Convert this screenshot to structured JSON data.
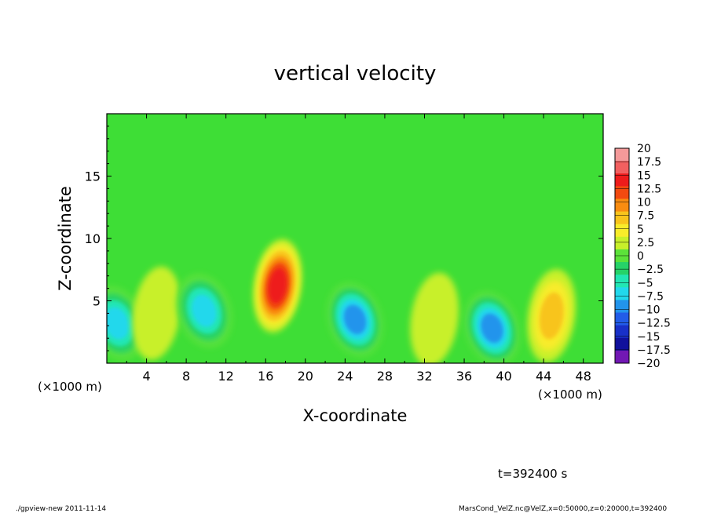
{
  "chart_data": {
    "type": "heatmap",
    "title": "vertical velocity",
    "xlabel": "X-coordinate",
    "ylabel": "Z-coordinate",
    "x_unit_note": "(×1000 m)",
    "x_unit_note_right": "(×1000 m)",
    "xlim": [
      0,
      50
    ],
    "ylim": [
      0,
      20
    ],
    "x_ticks": [
      4,
      8,
      12,
      16,
      20,
      24,
      28,
      32,
      36,
      40,
      44,
      48
    ],
    "y_ticks": [
      5,
      10,
      15
    ],
    "colorbar": {
      "levels": [
        20,
        17.5,
        15,
        12.5,
        10,
        7.5,
        5,
        2.5,
        0,
        -2.5,
        -5,
        -7.5,
        -10,
        -12.5,
        -15,
        -17.5,
        -20
      ],
      "level_labels": [
        "20",
        "17.5",
        "15",
        "12.5",
        "10",
        "7.5",
        "5",
        "2.5",
        "0",
        "−2.5",
        "−5",
        "−7.5",
        "−10",
        "−12.5",
        "−15",
        "−17.5",
        "−20"
      ],
      "colors": [
        "#f49a9a",
        "#f26060",
        "#ee1c1c",
        "#f24a10",
        "#f88c10",
        "#f8c41c",
        "#f8ec2a",
        "#c8f02a",
        "#5ce23a",
        "#26d268",
        "#22e6b4",
        "#22d8ec",
        "#2294ec",
        "#225ce8",
        "#1830c8",
        "#10109c",
        "#7218b4"
      ]
    },
    "features": [
      {
        "x": 1.0,
        "z": 3.2,
        "value": -11
      },
      {
        "x": 5.0,
        "z": 4.0,
        "value": 3
      },
      {
        "x": 9.8,
        "z": 4.2,
        "value": -11
      },
      {
        "x": 17.2,
        "z": 6.2,
        "value": 15
      },
      {
        "x": 25.0,
        "z": 3.5,
        "value": -14
      },
      {
        "x": 33.0,
        "z": 3.5,
        "value": 4
      },
      {
        "x": 38.8,
        "z": 2.8,
        "value": -13
      },
      {
        "x": 44.8,
        "z": 3.8,
        "value": 9
      }
    ]
  },
  "annotations": {
    "time": "t=392400 s",
    "footer_left": "./gpview-new  2011-11-14",
    "footer_right": "MarsCond_VelZ.nc@VelZ,x=0:50000,z=0:20000,t=392400"
  }
}
